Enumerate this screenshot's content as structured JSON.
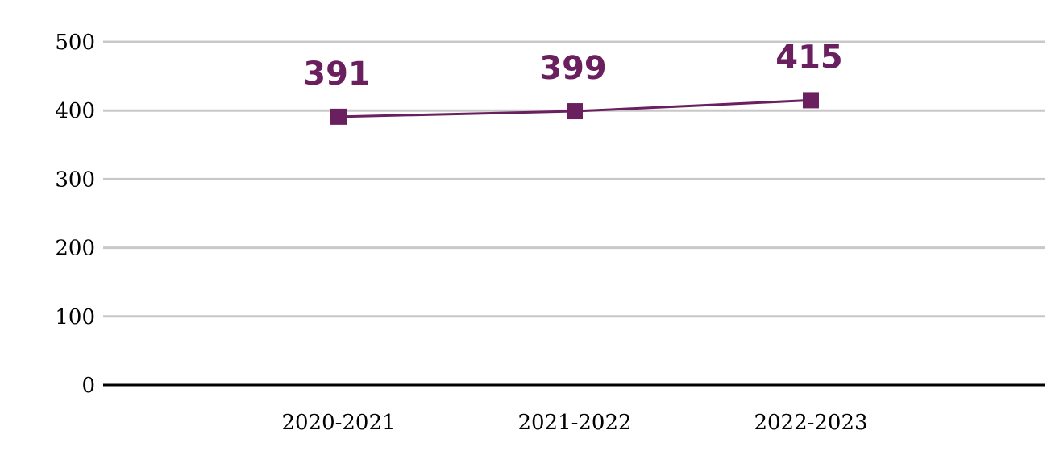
{
  "chart_data": {
    "type": "line",
    "categories": [
      "2020-2021",
      "2021-2022",
      "2022-2023"
    ],
    "series": [
      {
        "values": [
          391,
          399,
          415
        ],
        "color": "#6a1f5e",
        "marker": "square"
      }
    ],
    "data_labels": [
      "391",
      "399",
      "415"
    ],
    "y_ticks": [
      0,
      100,
      200,
      300,
      400,
      500
    ],
    "y_tick_labels": [
      "0",
      "100",
      "200",
      "300",
      "400",
      "500"
    ],
    "ylim": [
      0,
      500
    ],
    "grid": true,
    "colors": {
      "grid": "#c8c8c8",
      "axis": "#000000"
    }
  }
}
